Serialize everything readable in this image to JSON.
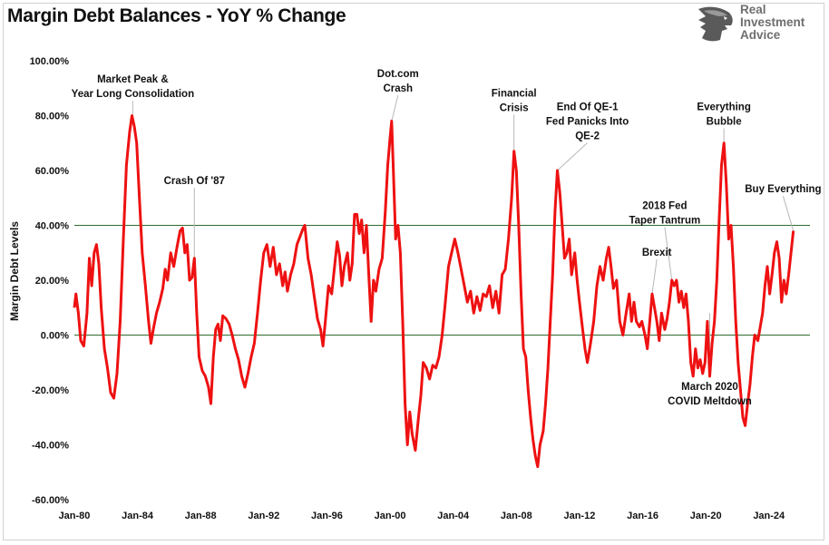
{
  "header": {
    "title": "Margin Debt Balances - YoY % Change",
    "brand_line1": "Real",
    "brand_line2": "Investment",
    "brand_line3": "Advice",
    "brand_icon": "eagle-head-icon"
  },
  "chart_data": {
    "type": "line",
    "title": "Margin Debt Balances - YoY % Change",
    "ylabel": "Margin Debt Levels",
    "xlabel": "",
    "ylim": [
      -60,
      100
    ],
    "xlim": [
      1980.0,
      2026.6
    ],
    "grid": false,
    "y_ticks": [
      "100.00%",
      "80.00%",
      "60.00%",
      "40.00%",
      "20.00%",
      "0.00%",
      "-20.00%",
      "-40.00%",
      "-60.00%"
    ],
    "x_ticks": [
      "Jan-80",
      "Jan-84",
      "Jan-88",
      "Jan-92",
      "Jan-96",
      "Jan-00",
      "Jan-04",
      "Jan-08",
      "Jan-12",
      "Jan-16",
      "Jan-20",
      "Jan-24"
    ],
    "reference_lines": [
      {
        "y": 40,
        "color": "#2e6b2e"
      },
      {
        "y": 0,
        "color": "#2e6b2e"
      }
    ],
    "series": [
      {
        "color": "#ee1111",
        "points": [
          [
            1980.0,
            10
          ],
          [
            1980.1,
            15
          ],
          [
            1980.25,
            8
          ],
          [
            1980.4,
            -2
          ],
          [
            1980.6,
            -4
          ],
          [
            1980.8,
            8
          ],
          [
            1980.95,
            28
          ],
          [
            1981.1,
            18
          ],
          [
            1981.25,
            30
          ],
          [
            1981.4,
            33
          ],
          [
            1981.55,
            26
          ],
          [
            1981.7,
            10
          ],
          [
            1981.9,
            -5
          ],
          [
            1982.1,
            -12
          ],
          [
            1982.3,
            -21
          ],
          [
            1982.5,
            -23
          ],
          [
            1982.7,
            -14
          ],
          [
            1982.9,
            5
          ],
          [
            1983.1,
            35
          ],
          [
            1983.3,
            62
          ],
          [
            1983.5,
            74
          ],
          [
            1983.65,
            80
          ],
          [
            1983.8,
            76
          ],
          [
            1983.95,
            70
          ],
          [
            1984.1,
            52
          ],
          [
            1984.3,
            30
          ],
          [
            1984.5,
            18
          ],
          [
            1984.7,
            5
          ],
          [
            1984.85,
            -3
          ],
          [
            1985.0,
            2
          ],
          [
            1985.2,
            8
          ],
          [
            1985.4,
            12
          ],
          [
            1985.6,
            17
          ],
          [
            1985.75,
            24
          ],
          [
            1985.9,
            20
          ],
          [
            1986.1,
            30
          ],
          [
            1986.3,
            25
          ],
          [
            1986.5,
            32
          ],
          [
            1986.7,
            38
          ],
          [
            1986.85,
            39
          ],
          [
            1987.0,
            30
          ],
          [
            1987.15,
            33
          ],
          [
            1987.3,
            20
          ],
          [
            1987.45,
            21
          ],
          [
            1987.6,
            28
          ],
          [
            1987.75,
            8
          ],
          [
            1987.9,
            -8
          ],
          [
            1988.1,
            -13
          ],
          [
            1988.3,
            -15
          ],
          [
            1988.5,
            -19
          ],
          [
            1988.65,
            -25
          ],
          [
            1988.8,
            -8
          ],
          [
            1988.95,
            2
          ],
          [
            1989.1,
            4
          ],
          [
            1989.25,
            -2
          ],
          [
            1989.4,
            7
          ],
          [
            1989.6,
            6
          ],
          [
            1989.8,
            4
          ],
          [
            1990.0,
            0
          ],
          [
            1990.2,
            -5
          ],
          [
            1990.4,
            -9
          ],
          [
            1990.6,
            -15
          ],
          [
            1990.8,
            -19
          ],
          [
            1991.0,
            -14
          ],
          [
            1991.2,
            -8
          ],
          [
            1991.4,
            -3
          ],
          [
            1991.6,
            8
          ],
          [
            1991.8,
            20
          ],
          [
            1992.0,
            30
          ],
          [
            1992.2,
            33
          ],
          [
            1992.4,
            25
          ],
          [
            1992.6,
            32
          ],
          [
            1992.8,
            22
          ],
          [
            1993.0,
            26
          ],
          [
            1993.2,
            18
          ],
          [
            1993.35,
            23
          ],
          [
            1993.5,
            16
          ],
          [
            1993.7,
            22
          ],
          [
            1993.9,
            26
          ],
          [
            1994.1,
            33
          ],
          [
            1994.3,
            36
          ],
          [
            1994.5,
            39
          ],
          [
            1994.6,
            40
          ],
          [
            1994.8,
            28
          ],
          [
            1995.0,
            22
          ],
          [
            1995.2,
            14
          ],
          [
            1995.4,
            6
          ],
          [
            1995.6,
            2
          ],
          [
            1995.75,
            -4
          ],
          [
            1995.9,
            5
          ],
          [
            1996.1,
            18
          ],
          [
            1996.3,
            15
          ],
          [
            1996.5,
            26
          ],
          [
            1996.65,
            34
          ],
          [
            1996.8,
            29
          ],
          [
            1996.95,
            18
          ],
          [
            1997.1,
            25
          ],
          [
            1997.3,
            30
          ],
          [
            1997.45,
            20
          ],
          [
            1997.6,
            26
          ],
          [
            1997.75,
            44
          ],
          [
            1997.9,
            44
          ],
          [
            1998.05,
            37
          ],
          [
            1998.2,
            42
          ],
          [
            1998.35,
            30
          ],
          [
            1998.5,
            40
          ],
          [
            1998.65,
            22
          ],
          [
            1998.8,
            5
          ],
          [
            1998.95,
            20
          ],
          [
            1999.1,
            16
          ],
          [
            1999.3,
            24
          ],
          [
            1999.5,
            28
          ],
          [
            1999.7,
            45
          ],
          [
            1999.85,
            62
          ],
          [
            2000.0,
            72
          ],
          [
            2000.1,
            78
          ],
          [
            2000.2,
            62
          ],
          [
            2000.35,
            35
          ],
          [
            2000.5,
            40
          ],
          [
            2000.65,
            30
          ],
          [
            2000.8,
            5
          ],
          [
            2000.95,
            -25
          ],
          [
            2001.1,
            -40
          ],
          [
            2001.25,
            -28
          ],
          [
            2001.4,
            -36
          ],
          [
            2001.6,
            -42
          ],
          [
            2001.8,
            -30
          ],
          [
            2001.95,
            -22
          ],
          [
            2002.1,
            -10
          ],
          [
            2002.3,
            -12
          ],
          [
            2002.5,
            -16
          ],
          [
            2002.7,
            -11
          ],
          [
            2002.9,
            -12
          ],
          [
            2003.1,
            -8
          ],
          [
            2003.3,
            0
          ],
          [
            2003.5,
            12
          ],
          [
            2003.7,
            25
          ],
          [
            2003.9,
            30
          ],
          [
            2004.1,
            35
          ],
          [
            2004.3,
            30
          ],
          [
            2004.5,
            24
          ],
          [
            2004.7,
            18
          ],
          [
            2004.9,
            12
          ],
          [
            2005.1,
            16
          ],
          [
            2005.3,
            8
          ],
          [
            2005.5,
            14
          ],
          [
            2005.7,
            9
          ],
          [
            2005.9,
            15
          ],
          [
            2006.1,
            14
          ],
          [
            2006.3,
            18
          ],
          [
            2006.5,
            10
          ],
          [
            2006.7,
            16
          ],
          [
            2006.9,
            8
          ],
          [
            2007.1,
            22
          ],
          [
            2007.3,
            24
          ],
          [
            2007.5,
            35
          ],
          [
            2007.7,
            50
          ],
          [
            2007.85,
            67
          ],
          [
            2008.0,
            60
          ],
          [
            2008.15,
            40
          ],
          [
            2008.3,
            15
          ],
          [
            2008.45,
            -5
          ],
          [
            2008.6,
            -8
          ],
          [
            2008.75,
            -20
          ],
          [
            2008.9,
            -30
          ],
          [
            2009.05,
            -38
          ],
          [
            2009.2,
            -44
          ],
          [
            2009.35,
            -48
          ],
          [
            2009.5,
            -40
          ],
          [
            2009.7,
            -35
          ],
          [
            2009.85,
            -25
          ],
          [
            2010.0,
            -12
          ],
          [
            2010.15,
            5
          ],
          [
            2010.3,
            22
          ],
          [
            2010.45,
            45
          ],
          [
            2010.6,
            60
          ],
          [
            2010.75,
            52
          ],
          [
            2010.9,
            40
          ],
          [
            2011.05,
            28
          ],
          [
            2011.2,
            30
          ],
          [
            2011.35,
            35
          ],
          [
            2011.5,
            22
          ],
          [
            2011.7,
            30
          ],
          [
            2011.85,
            20
          ],
          [
            2012.0,
            12
          ],
          [
            2012.2,
            2
          ],
          [
            2012.35,
            -5
          ],
          [
            2012.5,
            -10
          ],
          [
            2012.7,
            -3
          ],
          [
            2012.9,
            5
          ],
          [
            2013.1,
            18
          ],
          [
            2013.3,
            25
          ],
          [
            2013.5,
            20
          ],
          [
            2013.7,
            28
          ],
          [
            2013.85,
            32
          ],
          [
            2014.0,
            25
          ],
          [
            2014.15,
            17
          ],
          [
            2014.35,
            20
          ],
          [
            2014.55,
            5
          ],
          [
            2014.75,
            0
          ],
          [
            2014.95,
            8
          ],
          [
            2015.15,
            15
          ],
          [
            2015.3,
            5
          ],
          [
            2015.45,
            12
          ],
          [
            2015.6,
            5
          ],
          [
            2015.8,
            3
          ],
          [
            2015.95,
            5
          ],
          [
            2016.15,
            0
          ],
          [
            2016.3,
            -5
          ],
          [
            2016.45,
            5
          ],
          [
            2016.6,
            15
          ],
          [
            2016.75,
            10
          ],
          [
            2016.9,
            5
          ],
          [
            2017.05,
            -2
          ],
          [
            2017.2,
            8
          ],
          [
            2017.4,
            2
          ],
          [
            2017.55,
            6
          ],
          [
            2017.7,
            12
          ],
          [
            2017.85,
            20
          ],
          [
            2018.0,
            18
          ],
          [
            2018.15,
            20
          ],
          [
            2018.3,
            12
          ],
          [
            2018.45,
            16
          ],
          [
            2018.6,
            10
          ],
          [
            2018.75,
            15
          ],
          [
            2018.9,
            5
          ],
          [
            2019.05,
            -10
          ],
          [
            2019.2,
            -15
          ],
          [
            2019.35,
            -5
          ],
          [
            2019.5,
            -12
          ],
          [
            2019.65,
            -9
          ],
          [
            2019.8,
            -14
          ],
          [
            2019.95,
            -10
          ],
          [
            2020.1,
            5
          ],
          [
            2020.25,
            -15
          ],
          [
            2020.4,
            -3
          ],
          [
            2020.55,
            5
          ],
          [
            2020.7,
            20
          ],
          [
            2020.85,
            42
          ],
          [
            2021.0,
            62
          ],
          [
            2021.15,
            70
          ],
          [
            2021.3,
            55
          ],
          [
            2021.45,
            35
          ],
          [
            2021.6,
            40
          ],
          [
            2021.75,
            25
          ],
          [
            2021.9,
            5
          ],
          [
            2022.05,
            -10
          ],
          [
            2022.2,
            -20
          ],
          [
            2022.35,
            -30
          ],
          [
            2022.5,
            -33
          ],
          [
            2022.65,
            -25
          ],
          [
            2022.8,
            -18
          ],
          [
            2022.95,
            -8
          ],
          [
            2023.1,
            0
          ],
          [
            2023.3,
            -2
          ],
          [
            2023.45,
            3
          ],
          [
            2023.6,
            8
          ],
          [
            2023.75,
            18
          ],
          [
            2023.9,
            25
          ],
          [
            2024.05,
            15
          ],
          [
            2024.2,
            22
          ],
          [
            2024.35,
            30
          ],
          [
            2024.5,
            34
          ],
          [
            2024.65,
            28
          ],
          [
            2024.8,
            12
          ],
          [
            2024.95,
            20
          ],
          [
            2025.1,
            15
          ],
          [
            2025.25,
            22
          ],
          [
            2025.4,
            30
          ],
          [
            2025.55,
            38
          ]
        ]
      }
    ],
    "annotations": [
      {
        "lines": [
          "Market Peak &",
          "Year Long Consolidation"
        ],
        "x": 1983.7,
        "y": 80.5,
        "text_x": 1983.7,
        "text_y": 92
      },
      {
        "lines": [
          "Crash Of '87"
        ],
        "x": 1987.6,
        "y": 21,
        "text_x": 1987.6,
        "text_y": 55
      },
      {
        "lines": [
          "Dot.com",
          "Crash"
        ],
        "x": 2000.1,
        "y": 78,
        "text_x": 2000.5,
        "text_y": 94
      },
      {
        "lines": [
          "Financial",
          "Crisis"
        ],
        "x": 2007.85,
        "y": 67,
        "text_x": 2007.85,
        "text_y": 87
      },
      {
        "lines": [
          "End Of QE-1",
          "Fed Panicks Into",
          "QE-2"
        ],
        "x": 2010.6,
        "y": 60,
        "text_x": 2012.5,
        "text_y": 82
      },
      {
        "lines": [
          "Everything",
          "Bubble"
        ],
        "x": 2021.15,
        "y": 70,
        "text_x": 2021.15,
        "text_y": 82
      },
      {
        "lines": [
          "Buy Everything"
        ],
        "x": 2025.55,
        "y": 38,
        "text_x": 2024.9,
        "text_y": 52
      },
      {
        "lines": [
          "2018 Fed",
          "Taper Tantrum"
        ],
        "x": 2017.85,
        "y": 20,
        "text_x": 2017.4,
        "text_y": 46
      },
      {
        "lines": [
          "Brexit"
        ],
        "x": 2016.6,
        "y": 15,
        "text_x": 2016.9,
        "text_y": 29
      },
      {
        "lines": [
          "March 2020",
          "COVID Meltdown"
        ],
        "x": 2020.25,
        "y": 8,
        "text_x": 2020.25,
        "text_y": -20
      }
    ]
  }
}
